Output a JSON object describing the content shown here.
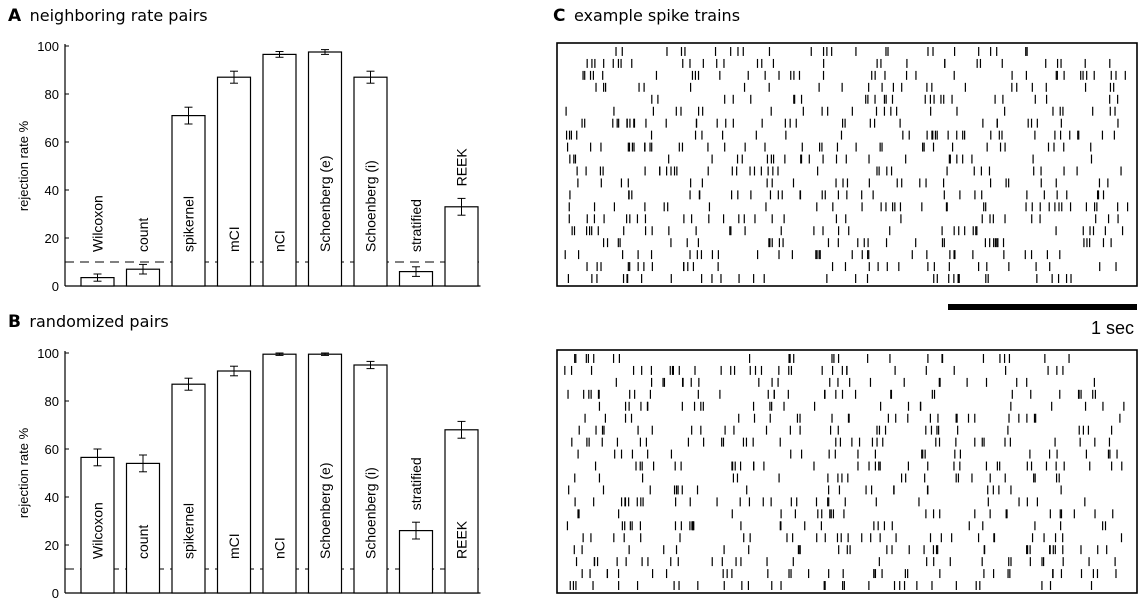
{
  "panels": {
    "A": {
      "letter": "A",
      "title": "neighboring rate pairs"
    },
    "B": {
      "letter": "B",
      "title": "randomized pairs"
    },
    "C": {
      "letter": "C",
      "title": "example spike trains"
    }
  },
  "scale_bar": {
    "label": "1 sec",
    "seconds": 1
  },
  "chart_data": [
    {
      "id": "A",
      "type": "bar",
      "title": "neighboring rate pairs",
      "ylabel": "rejection rate %",
      "ylim": [
        0,
        100
      ],
      "yticks": [
        "0",
        "20",
        "40",
        "60",
        "80",
        "100"
      ],
      "categories": [
        "Wilcoxon",
        "count",
        "spikernel",
        "mCI",
        "nCI",
        "Schoenberg (e)",
        "Schoenberg (i)",
        "stratified",
        "REEK"
      ],
      "values": [
        3.5,
        7,
        71,
        87,
        96.5,
        97.5,
        87,
        6,
        33
      ],
      "errors": [
        1.5,
        2,
        3.5,
        2.5,
        1.2,
        1,
        2.5,
        2,
        3.5
      ],
      "reference_line": 10
    },
    {
      "id": "B",
      "type": "bar",
      "title": "randomized pairs",
      "ylabel": "rejection rate %",
      "ylim": [
        0,
        100
      ],
      "yticks": [
        "0",
        "20",
        "40",
        "60",
        "80",
        "100"
      ],
      "categories": [
        "Wilcoxon",
        "count",
        "spikernel",
        "mCI",
        "nCI",
        "Schoenberg (e)",
        "Schoenberg (i)",
        "stratified",
        "REEK"
      ],
      "values": [
        56.5,
        54,
        87,
        92.5,
        99.5,
        99.5,
        95,
        26,
        68
      ],
      "errors": [
        3.5,
        3.5,
        2.5,
        2,
        0.5,
        0.5,
        1.5,
        3.5,
        3.5
      ],
      "reference_line": 10
    },
    {
      "id": "C",
      "type": "scatter",
      "title": "example spike trains",
      "raster_panels": 2,
      "trials_per_panel": 20
    }
  ]
}
